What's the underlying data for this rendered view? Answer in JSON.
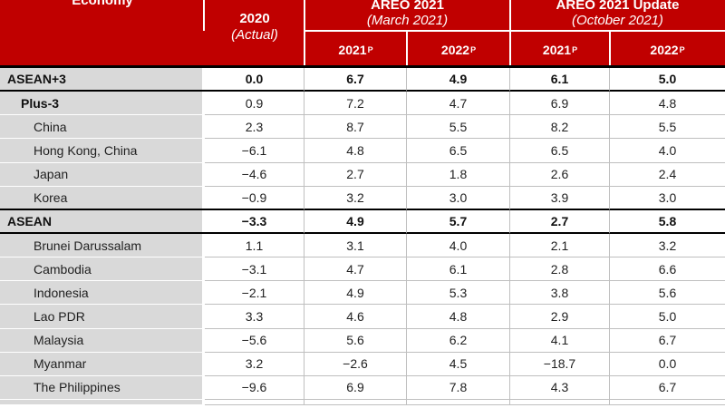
{
  "header": {
    "economy": "Economy",
    "actual": {
      "line1": "2020",
      "line2": "(Actual)"
    },
    "groups": [
      {
        "line1": "AREO 2021",
        "line2": "(March 2021)"
      },
      {
        "line1": "AREO 2021 Update",
        "line2": "(October 2021)"
      }
    ],
    "subcols": [
      {
        "year": "2021",
        "sup": "P"
      },
      {
        "year": "2022",
        "sup": "P"
      },
      {
        "year": "2021",
        "sup": "P"
      },
      {
        "year": "2022",
        "sup": "P"
      }
    ]
  },
  "colors": {
    "header_red": "#C00000",
    "label_gray": "#D9D9D9",
    "grid_line": "#BFBFBF",
    "thick_border": "#000000",
    "header_text": "#FFFFFF",
    "body_text": "#1F1F1F"
  },
  "rows": [
    {
      "label": "ASEAN+3",
      "values": [
        "0.0",
        "6.7",
        "4.9",
        "6.1",
        "5.0"
      ]
    },
    {
      "label": "Plus-3",
      "values": [
        "0.9",
        "7.2",
        "4.7",
        "6.9",
        "4.8"
      ]
    },
    {
      "label": "China",
      "values": [
        "2.3",
        "8.7",
        "5.5",
        "8.2",
        "5.5"
      ]
    },
    {
      "label": "Hong Kong, China",
      "values": [
        "−6.1",
        "4.8",
        "6.5",
        "6.5",
        "4.0"
      ]
    },
    {
      "label": "Japan",
      "values": [
        "−4.6",
        "2.7",
        "1.8",
        "2.6",
        "2.4"
      ]
    },
    {
      "label": "Korea",
      "values": [
        "−0.9",
        "3.2",
        "3.0",
        "3.9",
        "3.0"
      ]
    },
    {
      "label": "ASEAN",
      "values": [
        "−3.3",
        "4.9",
        "5.7",
        "2.7",
        "5.8"
      ]
    },
    {
      "label": "Brunei Darussalam",
      "values": [
        "1.1",
        "3.1",
        "4.0",
        "2.1",
        "3.2"
      ]
    },
    {
      "label": "Cambodia",
      "values": [
        "−3.1",
        "4.7",
        "6.1",
        "2.8",
        "6.6"
      ]
    },
    {
      "label": "Indonesia",
      "values": [
        "−2.1",
        "4.9",
        "5.3",
        "3.8",
        "5.6"
      ]
    },
    {
      "label": "Lao PDR",
      "values": [
        "3.3",
        "4.6",
        "4.8",
        "2.9",
        "5.0"
      ]
    },
    {
      "label": "Malaysia",
      "values": [
        "−5.6",
        "5.6",
        "6.2",
        "4.1",
        "6.7"
      ]
    },
    {
      "label": "Myanmar",
      "values": [
        "3.2",
        "−2.6",
        "4.5",
        "−18.7",
        "0.0"
      ]
    },
    {
      "label": "The Philippines",
      "values": [
        "−9.6",
        "6.9",
        "7.8",
        "4.3",
        "6.7"
      ]
    }
  ]
}
